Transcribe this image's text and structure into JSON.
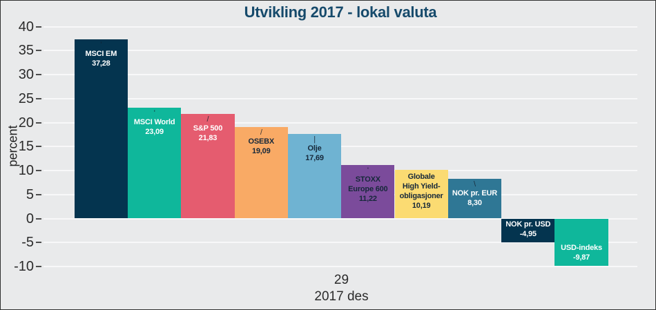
{
  "chart_data": {
    "type": "bar",
    "title": "Utvikling 2017 - lokal valuta",
    "ylabel": "percent",
    "xlabel_line1": "29",
    "xlabel_line2": "2017 des",
    "ylim": [
      -10,
      40
    ],
    "ytick_step": 5,
    "grid": true,
    "legend": "none",
    "background_color": "#e9eaeb",
    "gridline_color": "#f8f8f9",
    "title_color": "#164a6b",
    "yticks": [
      40,
      35,
      30,
      25,
      20,
      15,
      10,
      5,
      0,
      -5,
      -10
    ],
    "ytick_labels": [
      "40",
      "35",
      "30",
      "25",
      "20",
      "15",
      "10",
      "5",
      "0",
      "-5",
      "-10"
    ],
    "categories": [
      "MSCI EM",
      "MSCI World",
      "S&P 500",
      "OSEBX",
      "Olje",
      "STOXX Europe 600",
      "Globale High Yield-obligasjoner",
      "NOK pr. EUR",
      "NOK pr. USD",
      "USD-indeks"
    ],
    "values": [
      37.28,
      23.09,
      21.83,
      19.09,
      17.69,
      11.22,
      10.19,
      8.3,
      -4.95,
      -9.87
    ],
    "bars": [
      {
        "label_lines": [
          "MSCI EM"
        ],
        "value": 37.28,
        "value_label": "37,28",
        "color": "#04344f",
        "text_color": "#ffffff",
        "leader": "'"
      },
      {
        "label_lines": [
          "MSCI World"
        ],
        "value": 23.09,
        "value_label": "23,09",
        "color": "#0fb79b",
        "text_color": "#ffffff",
        "leader": "'"
      },
      {
        "label_lines": [
          "S&P 500"
        ],
        "value": 21.83,
        "value_label": "21,83",
        "color": "#e55c6f",
        "text_color": "#ffffff",
        "leader": "/"
      },
      {
        "label_lines": [
          "OSEBX"
        ],
        "value": 19.09,
        "value_label": "19,09",
        "color": "#f9aa65",
        "text_color": "#16283a",
        "leader": "/"
      },
      {
        "label_lines": [
          "Olje"
        ],
        "value": 17.69,
        "value_label": "17,69",
        "color": "#6fb3d2",
        "text_color": "#16283a",
        "leader": "|"
      },
      {
        "label_lines": [
          "STOXX",
          "Europe 600"
        ],
        "value": 11.22,
        "value_label": "11,22",
        "color": "#7b4b9b",
        "text_color": "#16283a",
        "leader": "'"
      },
      {
        "label_lines": [
          "Globale",
          "High Yield-",
          "obligasjoner"
        ],
        "value": 10.19,
        "value_label": "10,19",
        "color": "#fbdb72",
        "text_color": "#16283a",
        "leader": ""
      },
      {
        "label_lines": [
          "NOK pr. EUR"
        ],
        "value": 8.3,
        "value_label": "8,30",
        "color": "#2f7795",
        "text_color": "#ffffff",
        "leader": "\\"
      },
      {
        "label_lines": [
          "NOK pr. USD"
        ],
        "value": -4.95,
        "value_label": "-4,95",
        "color": "#04344f",
        "text_color": "#ffffff",
        "leader": ""
      },
      {
        "label_lines": [
          "USD-indeks"
        ],
        "value": -9.87,
        "value_label": "-9,87",
        "color": "#0fb79b",
        "text_color": "#ffffff",
        "leader": ""
      }
    ]
  }
}
